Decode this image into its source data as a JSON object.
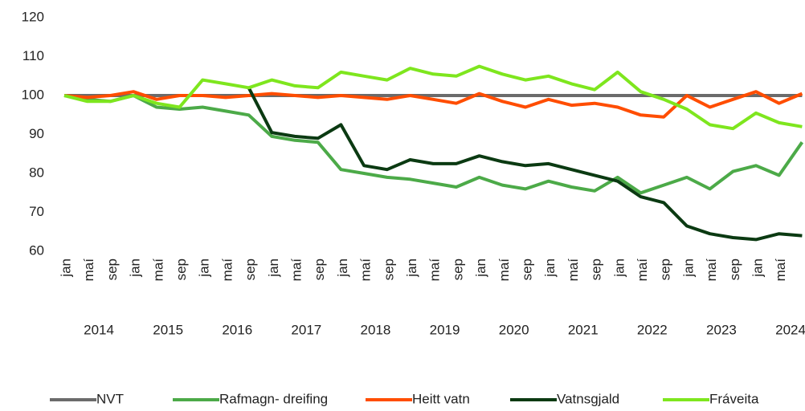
{
  "chart_data": {
    "type": "line",
    "categories": [
      "jan",
      "maí",
      "sep",
      "jan",
      "maí",
      "sep",
      "jan",
      "maí",
      "sep",
      "jan",
      "maí",
      "sep",
      "jan",
      "maí",
      "sep",
      "jan",
      "maí",
      "sep",
      "jan",
      "maí",
      "sep",
      "jan",
      "maí",
      "sep",
      "jan",
      "maí",
      "sep",
      "jan",
      "maí",
      "sep",
      "jan",
      "maí",
      null
    ],
    "years": [
      "2014",
      "2015",
      "2016",
      "2017",
      "2018",
      "2019",
      "2020",
      "2021",
      "2022",
      "2023",
      "2024"
    ],
    "ylim": [
      60,
      120
    ],
    "yticks": [
      60,
      70,
      80,
      90,
      100,
      110,
      120
    ],
    "legend": "bottom",
    "series": [
      {
        "name": "NVT",
        "color": "#6b6b6b",
        "values": [
          100,
          100,
          100,
          100,
          100,
          100,
          100,
          100,
          100,
          100,
          100,
          100,
          100,
          100,
          100,
          100,
          100,
          100,
          100,
          100,
          100,
          100,
          100,
          100,
          100,
          100,
          100,
          100,
          100,
          100,
          100,
          100,
          100
        ]
      },
      {
        "name": "Rafmagn- dreifing",
        "color": "#4caa48",
        "values": [
          100,
          99,
          98.5,
          100,
          97,
          96.5,
          97,
          96,
          95,
          89.5,
          88.5,
          88,
          81,
          80,
          79,
          78.5,
          77.5,
          76.5,
          79,
          77,
          76,
          78,
          76.5,
          75.5,
          79,
          75,
          77,
          79,
          76,
          80.5,
          82,
          79.5,
          88
        ]
      },
      {
        "name": "Heitt vatn",
        "color": "#ff4d00",
        "values": [
          100,
          99.5,
          100,
          101,
          99,
          100,
          100,
          99.5,
          100,
          100.5,
          100,
          99.5,
          100,
          99.5,
          99,
          100,
          99,
          98,
          100.5,
          98.5,
          97,
          99,
          97.5,
          98,
          97,
          95,
          94.5,
          100,
          97,
          99,
          101,
          98,
          100.5
        ]
      },
      {
        "name": "Vatnsgjald",
        "color": "#0b3a12",
        "values": [
          null,
          null,
          null,
          null,
          null,
          null,
          null,
          null,
          102,
          90.5,
          89.5,
          89,
          92.5,
          82,
          81,
          83.5,
          82.5,
          82.5,
          84.5,
          83,
          82,
          82.5,
          81,
          79.5,
          78,
          74,
          72.5,
          66.5,
          64.5,
          63.5,
          63,
          64.5,
          64
        ]
      },
      {
        "name": "Fráveita",
        "color": "#7ee61e",
        "values": [
          100,
          98.5,
          98.5,
          100,
          98,
          97,
          104,
          103,
          102,
          104,
          102.5,
          102,
          106,
          105,
          104,
          107,
          105.5,
          105,
          107.5,
          105.5,
          104,
          105,
          103,
          101.5,
          106,
          101,
          99,
          96.5,
          92.5,
          91.5,
          95.5,
          93,
          92
        ]
      }
    ]
  }
}
